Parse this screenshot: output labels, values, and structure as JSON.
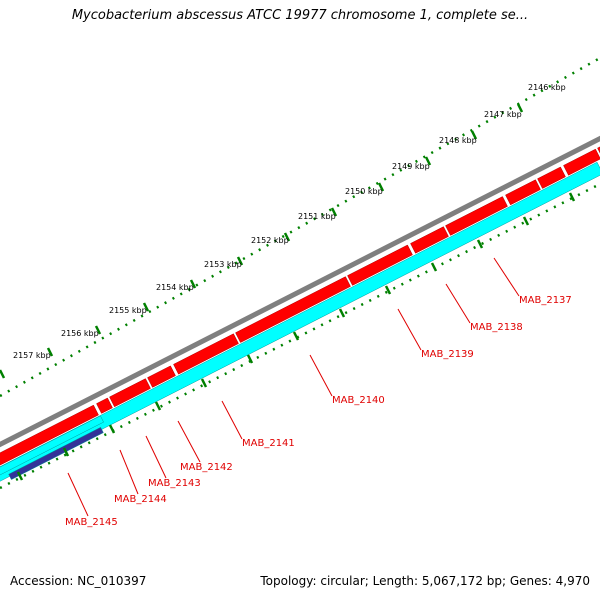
{
  "title": "Mycobacterium abscessus ATCC 19977 chromosome 1, complete se...",
  "accession": "Accession: NC_010397",
  "summary": "Topology: circular; Length: 5,067,172 bp; Genes: 4,970",
  "colors": {
    "backbone": "#7f7f7f",
    "forward_genes": "#ff0000",
    "reverse_genes": "#00ffff",
    "selected_gene": "#333399",
    "ticks": "#008000",
    "labels": "#e00000"
  },
  "kbp_ticks": [
    "2146 kbp",
    "2147 kbp",
    "2148 kbp",
    "2149 kbp",
    "2150 kbp",
    "2151 kbp",
    "2152 kbp",
    "2153 kbp",
    "2154 kbp",
    "2155 kbp",
    "2156 kbp",
    "2157 kbp"
  ],
  "gene_labels": [
    "MAB_2137",
    "MAB_2138",
    "MAB_2139",
    "MAB_2140",
    "MAB_2141",
    "MAB_2142",
    "MAB_2143",
    "MAB_2144",
    "MAB_2145"
  ]
}
